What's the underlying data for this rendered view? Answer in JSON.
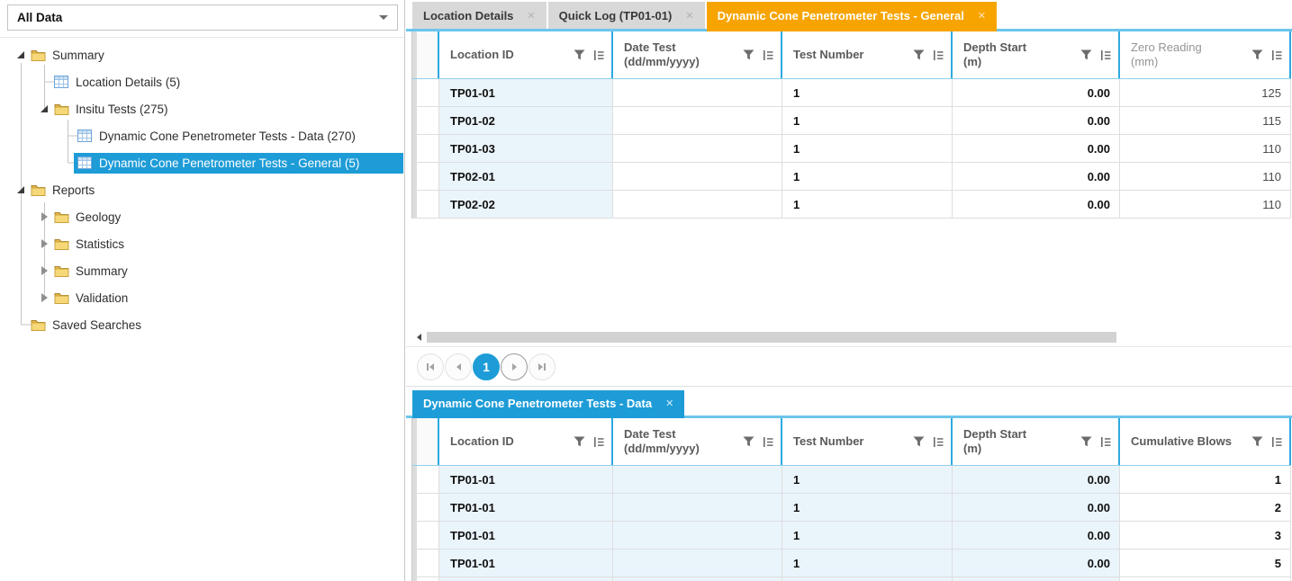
{
  "sidebar": {
    "search_selector": {
      "value": "All Data"
    },
    "tree_items": [
      {
        "label": "Summary",
        "type": "folder",
        "level": 0,
        "expander": "expanded",
        "selected": false
      },
      {
        "label": "Location Details (5)",
        "type": "table",
        "level": 1,
        "expander": "none",
        "selected": false
      },
      {
        "label": "Insitu Tests (275)",
        "type": "folder",
        "level": 1,
        "expander": "expanded",
        "selected": false
      },
      {
        "label": "Dynamic Cone Penetrometer Tests - Data (270)",
        "type": "table",
        "level": 2,
        "expander": "none",
        "selected": false
      },
      {
        "label": "Dynamic Cone Penetrometer Tests - General (5)",
        "type": "table",
        "level": 2,
        "expander": "none",
        "selected": true
      },
      {
        "label": "Reports",
        "type": "folder",
        "level": 0,
        "expander": "expanded",
        "selected": false
      },
      {
        "label": "Geology",
        "type": "folder",
        "level": 1,
        "expander": "collapsed",
        "selected": false
      },
      {
        "label": "Statistics",
        "type": "folder",
        "level": 1,
        "expander": "collapsed",
        "selected": false
      },
      {
        "label": "Summary",
        "type": "folder",
        "level": 1,
        "expander": "collapsed",
        "selected": false
      },
      {
        "label": "Validation",
        "type": "folder",
        "level": 1,
        "expander": "collapsed",
        "selected": false
      },
      {
        "label": "Saved Searches",
        "type": "folder",
        "level": 0,
        "expander": "none",
        "selected": false
      }
    ]
  },
  "top_pane": {
    "tabs": [
      {
        "label": "Location Details",
        "close_glyph": "✕",
        "state": "inactive"
      },
      {
        "label": "Quick Log (TP01-01)",
        "close_glyph": "✕",
        "state": "inactive"
      },
      {
        "label": "Dynamic Cone Penetrometer Tests - General",
        "close_glyph": "✕",
        "state": "focused"
      }
    ],
    "grid": {
      "columns": [
        {
          "title": "Location ID",
          "subtitle": "",
          "align": "left",
          "header_muted": false,
          "value_bold": true,
          "readonly": true
        },
        {
          "title": "Date Test",
          "subtitle": "(dd/mm/yyyy)",
          "align": "left",
          "header_muted": false,
          "value_bold": true,
          "readonly": false
        },
        {
          "title": "Test Number",
          "subtitle": "",
          "align": "left",
          "header_muted": false,
          "value_bold": true,
          "readonly": false
        },
        {
          "title": "Depth Start",
          "subtitle": "(m)",
          "align": "right",
          "header_muted": false,
          "value_bold": true,
          "readonly": false
        },
        {
          "title": "Zero Reading",
          "subtitle": "(mm)",
          "align": "right",
          "header_muted": true,
          "value_bold": false,
          "readonly": false
        }
      ],
      "rows": [
        [
          "TP01-01",
          "",
          "1",
          "0.00",
          "125"
        ],
        [
          "TP01-02",
          "",
          "1",
          "0.00",
          "115"
        ],
        [
          "TP01-03",
          "",
          "1",
          "0.00",
          "110"
        ],
        [
          "TP02-01",
          "",
          "1",
          "0.00",
          "110"
        ],
        [
          "TP02-02",
          "",
          "1",
          "0.00",
          "110"
        ]
      ]
    },
    "pager": {
      "current_page": "1",
      "buttons": [
        "first-page",
        "previous-page",
        "current-page",
        "next-page",
        "last-page"
      ]
    }
  },
  "bottom_pane": {
    "tabs": [
      {
        "label": "Dynamic Cone Penetrometer Tests - Data",
        "close_glyph": "✕",
        "state": "active"
      }
    ],
    "grid": {
      "columns": [
        {
          "title": "Location ID",
          "subtitle": "",
          "align": "left",
          "header_muted": false,
          "value_bold": true,
          "readonly": true
        },
        {
          "title": "Date Test",
          "subtitle": "(dd/mm/yyyy)",
          "align": "left",
          "header_muted": false,
          "value_bold": true,
          "readonly": true
        },
        {
          "title": "Test Number",
          "subtitle": "",
          "align": "left",
          "header_muted": false,
          "value_bold": true,
          "readonly": true
        },
        {
          "title": "Depth Start",
          "subtitle": "(m)",
          "align": "right",
          "header_muted": false,
          "value_bold": true,
          "readonly": true
        },
        {
          "title": "Cumulative Blows",
          "subtitle": "",
          "align": "right",
          "header_muted": false,
          "value_bold": true,
          "readonly": false
        }
      ],
      "rows": [
        [
          "TP01-01",
          "",
          "1",
          "0.00",
          "1"
        ],
        [
          "TP01-01",
          "",
          "1",
          "0.00",
          "2"
        ],
        [
          "TP01-01",
          "",
          "1",
          "0.00",
          "3"
        ],
        [
          "TP01-01",
          "",
          "1",
          "0.00",
          "5"
        ],
        [
          "",
          "",
          "",
          "",
          ""
        ]
      ]
    }
  },
  "colors": {
    "accent_blue": "#1e9cd7",
    "focused_tab_orange": "#f7a400",
    "tabstrip_underline_blue": "#6cc5ec",
    "header_separator_blue": "#2da9e1",
    "readonly_cell_blue": "#eaf4fb",
    "inactive_tab_gray": "#d8d8d8",
    "selected_tree_node_bg": "#1e9cd7"
  }
}
